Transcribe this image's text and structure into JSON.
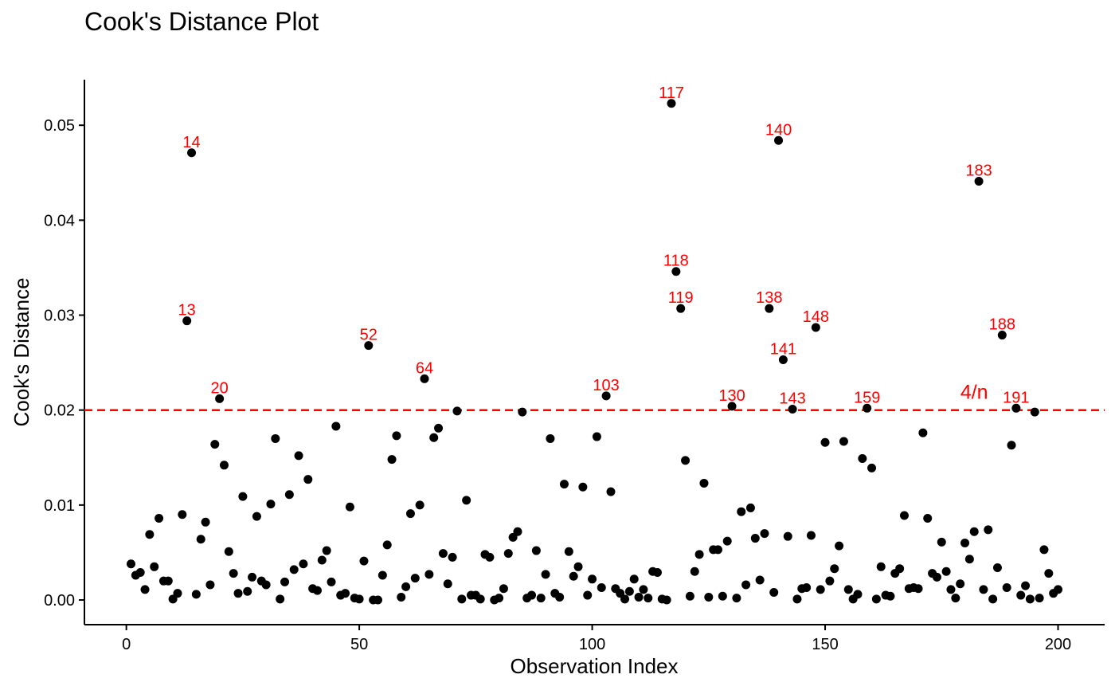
{
  "chart_data": {
    "type": "scatter",
    "title": "Cook's Distance Plot",
    "xlabel": "Observation Index",
    "ylabel": "Cook's Distance",
    "xlim": [
      -9,
      210
    ],
    "ylim": [
      -0.0026,
      0.0548
    ],
    "x_ticks": [
      0,
      50,
      100,
      150,
      200
    ],
    "x_tick_labels": [
      "0",
      "50",
      "100",
      "150",
      "200"
    ],
    "y_ticks": [
      0,
      0.01,
      0.02,
      0.03,
      0.04,
      0.05
    ],
    "y_tick_labels": [
      "0.00",
      "0.01",
      "0.02",
      "0.03",
      "0.04",
      "0.05"
    ],
    "grid": false,
    "point_color": "#000000",
    "label_color": "#ff0000",
    "threshold": {
      "value": 0.02,
      "label": "4/n",
      "color": "#ff0000",
      "style": "dashed"
    },
    "x": [
      1,
      2,
      3,
      4,
      5,
      6,
      7,
      8,
      9,
      10,
      11,
      12,
      13,
      14,
      15,
      16,
      17,
      18,
      19,
      20,
      21,
      22,
      23,
      24,
      25,
      26,
      27,
      28,
      29,
      30,
      31,
      32,
      33,
      34,
      35,
      36,
      37,
      38,
      39,
      40,
      41,
      42,
      43,
      44,
      45,
      46,
      47,
      48,
      49,
      50,
      51,
      52,
      53,
      54,
      55,
      56,
      57,
      58,
      59,
      60,
      61,
      62,
      63,
      64,
      65,
      66,
      67,
      68,
      69,
      70,
      71,
      72,
      73,
      74,
      75,
      76,
      77,
      78,
      79,
      80,
      81,
      82,
      83,
      84,
      85,
      86,
      87,
      88,
      89,
      90,
      91,
      92,
      93,
      94,
      95,
      96,
      97,
      98,
      99,
      100,
      101,
      102,
      103,
      104,
      105,
      106,
      107,
      108,
      109,
      110,
      111,
      112,
      113,
      114,
      115,
      116,
      117,
      118,
      119,
      120,
      121,
      122,
      123,
      124,
      125,
      126,
      127,
      128,
      129,
      130,
      131,
      132,
      133,
      134,
      135,
      136,
      137,
      138,
      139,
      140,
      141,
      142,
      143,
      144,
      145,
      146,
      147,
      148,
      149,
      150,
      151,
      152,
      153,
      154,
      155,
      156,
      157,
      158,
      159,
      160,
      161,
      162,
      163,
      164,
      165,
      166,
      167,
      168,
      169,
      170,
      171,
      172,
      173,
      174,
      175,
      176,
      177,
      178,
      179,
      180,
      181,
      182,
      183,
      184,
      185,
      186,
      187,
      188,
      189,
      190,
      191,
      192,
      193,
      194,
      195,
      196,
      197,
      198,
      199,
      200
    ],
    "y": [
      0.0038,
      0.0026,
      0.0029,
      0.0011,
      0.0069,
      0.0035,
      0.0086,
      0.002,
      0.002,
      0.0001,
      0.0007,
      0.009,
      0.0294,
      0.0471,
      0.0006,
      0.0064,
      0.0082,
      0.0016,
      0.0164,
      0.0212,
      0.0142,
      0.0051,
      0.0028,
      0.0007,
      0.0109,
      0.0009,
      0.0024,
      0.0088,
      0.002,
      0.0016,
      0.0101,
      0.017,
      0.0001,
      0.0019,
      0.0111,
      0.0032,
      0.0152,
      0.0038,
      0.0127,
      0.0012,
      0.001,
      0.0042,
      0.0052,
      0.0019,
      0.0183,
      0.0005,
      0.0007,
      0.0098,
      0.0002,
      0.0001,
      0.0041,
      0.0268,
      0.0,
      0.0,
      0.0026,
      0.0058,
      0.0148,
      0.0173,
      0.0003,
      0.0014,
      0.0091,
      0.0023,
      0.01,
      0.0233,
      0.0027,
      0.0171,
      0.0181,
      0.0049,
      0.0017,
      0.0045,
      0.0199,
      0.0001,
      0.0105,
      0.0005,
      0.0005,
      0.0001,
      0.0048,
      0.0045,
      0.0,
      0.0002,
      0.0012,
      0.0049,
      0.0066,
      0.0072,
      0.0198,
      0.0002,
      0.0005,
      0.0052,
      0.0002,
      0.0027,
      0.017,
      0.0007,
      0.0003,
      0.0122,
      0.0051,
      0.0025,
      0.0035,
      0.0119,
      0.0005,
      0.0022,
      0.0172,
      0.0013,
      0.0215,
      0.0114,
      0.0012,
      0.0007,
      0.0001,
      0.0009,
      0.0022,
      0.0003,
      0.0011,
      0.0002,
      0.003,
      0.0029,
      0.0001,
      0.0,
      0.0523,
      0.0346,
      0.0307,
      0.0147,
      0.0004,
      0.003,
      0.0048,
      0.0123,
      0.0003,
      0.0053,
      0.0053,
      0.0004,
      0.0062,
      0.0204,
      0.0002,
      0.0093,
      0.0016,
      0.0097,
      0.0065,
      0.0021,
      0.007,
      0.0307,
      0.0008,
      0.0484,
      0.0253,
      0.0067,
      0.0201,
      0.0001,
      0.0012,
      0.0013,
      0.0068,
      0.0287,
      0.0011,
      0.0166,
      0.002,
      0.0033,
      0.0057,
      0.0167,
      0.0011,
      0.0001,
      0.0006,
      0.0149,
      0.0202,
      0.0139,
      0.0001,
      0.0035,
      0.0005,
      0.0004,
      0.0028,
      0.0033,
      0.0089,
      0.0012,
      0.0013,
      0.0012,
      0.0176,
      0.0086,
      0.0028,
      0.0024,
      0.0061,
      0.003,
      0.0011,
      0.0002,
      0.0017,
      0.006,
      0.0043,
      0.0072,
      0.0441,
      0.0011,
      0.0074,
      0.0001,
      0.0034,
      0.0279,
      0.0013,
      0.0163,
      0.0202,
      0.0005,
      0.0015,
      0.0001,
      0.0198,
      0.0002,
      0.0053,
      0.0028,
      0.0007,
      0.0011
    ],
    "labeled_points": [
      {
        "x": 13,
        "y": 0.0294,
        "label": "13"
      },
      {
        "x": 14,
        "y": 0.0471,
        "label": "14"
      },
      {
        "x": 20,
        "y": 0.0212,
        "label": "20"
      },
      {
        "x": 52,
        "y": 0.0268,
        "label": "52"
      },
      {
        "x": 64,
        "y": 0.0233,
        "label": "64"
      },
      {
        "x": 103,
        "y": 0.0215,
        "label": "103"
      },
      {
        "x": 117,
        "y": 0.0523,
        "label": "117"
      },
      {
        "x": 118,
        "y": 0.0346,
        "label": "118"
      },
      {
        "x": 119,
        "y": 0.0307,
        "label": "119"
      },
      {
        "x": 130,
        "y": 0.0204,
        "label": "130"
      },
      {
        "x": 138,
        "y": 0.0307,
        "label": "138"
      },
      {
        "x": 140,
        "y": 0.0484,
        "label": "140"
      },
      {
        "x": 141,
        "y": 0.0253,
        "label": "141"
      },
      {
        "x": 143,
        "y": 0.0201,
        "label": "143"
      },
      {
        "x": 148,
        "y": 0.0287,
        "label": "148"
      },
      {
        "x": 159,
        "y": 0.0202,
        "label": "159"
      },
      {
        "x": 183,
        "y": 0.0441,
        "label": "183"
      },
      {
        "x": 188,
        "y": 0.0279,
        "label": "188"
      },
      {
        "x": 191,
        "y": 0.0202,
        "label": "191"
      }
    ]
  }
}
